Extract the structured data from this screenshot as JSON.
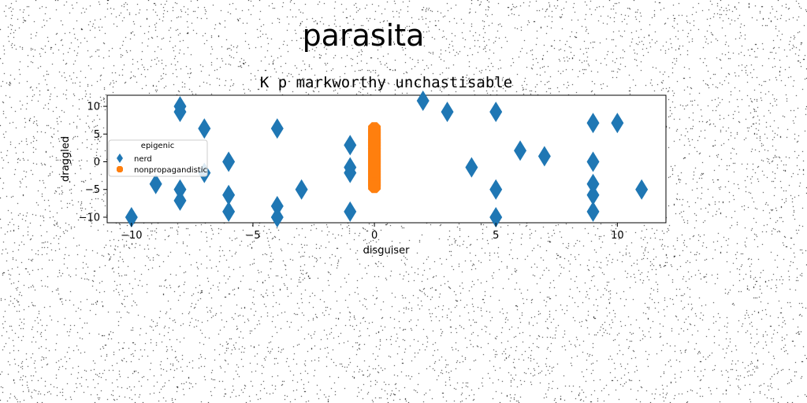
{
  "chart_data": {
    "type": "scatter",
    "suptitle": "parasita",
    "title": "K p markworthy unchastisable",
    "xlabel": "disguiser",
    "ylabel": "draggled",
    "xlim": [
      -11,
      12
    ],
    "ylim": [
      -11,
      12
    ],
    "xticks": [
      -10,
      -5,
      0,
      5,
      10
    ],
    "yticks": [
      -10,
      -5,
      0,
      5,
      10
    ],
    "xtick_labels": [
      "−10",
      "−5",
      "0",
      "5",
      "10"
    ],
    "ytick_labels": [
      "−10",
      "−5",
      "0",
      "5",
      "10"
    ],
    "grid": false,
    "legend": {
      "title": "epigenic",
      "placement": "center-left"
    },
    "series": [
      {
        "name": "nerd",
        "marker": "diamond",
        "color": "#1f77b4",
        "x": [
          -10,
          -9,
          -8,
          -8,
          -8,
          -8,
          -7,
          -7,
          -6,
          -6,
          -6,
          -4,
          -4,
          -4,
          -3,
          -1,
          -1,
          -1,
          -1,
          2,
          3,
          4,
          5,
          5,
          5,
          6,
          7,
          9,
          9,
          9,
          9,
          9,
          10,
          11
        ],
        "y": [
          -10,
          -4,
          10,
          9,
          -5,
          -7,
          6,
          -2,
          0,
          -6,
          -9,
          6,
          -8,
          -10,
          -5,
          3,
          -1,
          -2,
          -9,
          11,
          9,
          -1,
          9,
          -5,
          -10,
          2,
          1,
          7,
          0,
          -4,
          -6,
          -9,
          7,
          -5
        ]
      },
      {
        "name": "nonpropagandistic",
        "marker": "octagon",
        "color": "#ff7f0e",
        "x": [
          0,
          0,
          0,
          0,
          0,
          0,
          0,
          0,
          0,
          0,
          0,
          0,
          0,
          0,
          0,
          0,
          0,
          0,
          0,
          0,
          0,
          0
        ],
        "y": [
          6,
          5.5,
          5,
          4.5,
          4,
          3.5,
          3,
          2.5,
          2,
          1.5,
          1,
          0.5,
          0,
          -0.5,
          -1,
          -1.5,
          -2,
          -2.5,
          -3,
          -3.5,
          -4,
          -4.5
        ]
      }
    ]
  }
}
